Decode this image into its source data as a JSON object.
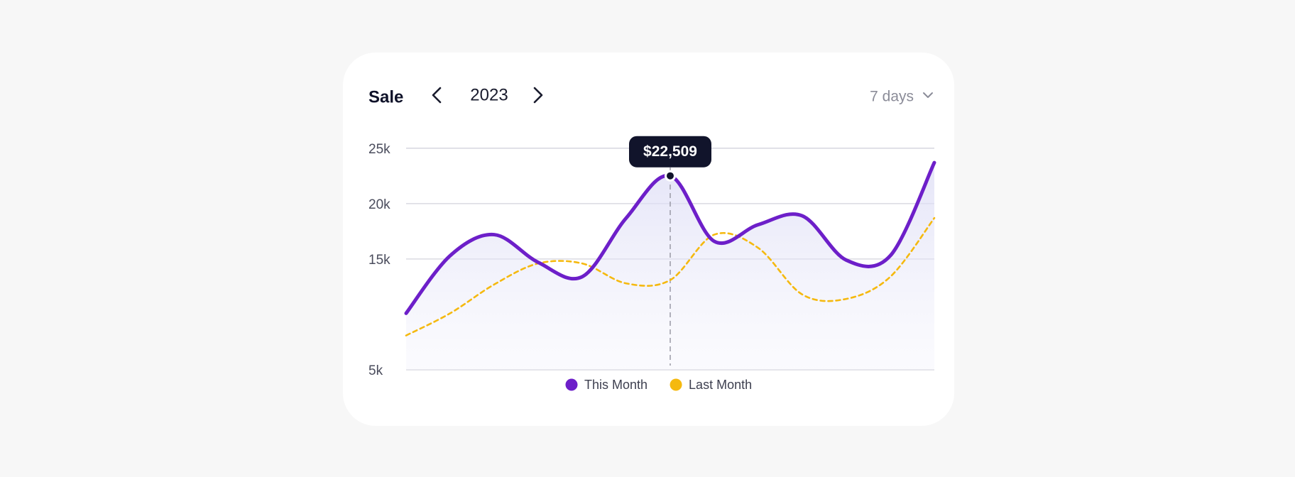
{
  "chart_data": {
    "type": "line",
    "title": "Sale",
    "period": "2023",
    "range": "7 days",
    "categories": [
      null,
      null,
      null,
      null,
      null,
      null,
      null,
      null,
      null,
      null,
      null,
      null,
      null
    ],
    "series": [
      {
        "name": "This Month",
        "color": "#6d1fc9",
        "values": [
          10100,
          15300,
          17200,
          14700,
          13400,
          18700,
          22509,
          16600,
          18100,
          18900,
          14900,
          15300,
          23700
        ],
        "value_labels": [
          null,
          null,
          null,
          null,
          null,
          null,
          "$22,509",
          null,
          null,
          null,
          null,
          null,
          null
        ]
      },
      {
        "name": "Last Month",
        "color": "#f5b90f",
        "values": [
          8100,
          10100,
          12700,
          14600,
          14600,
          12800,
          13100,
          17200,
          16000,
          11800,
          11400,
          13400,
          18700
        ]
      }
    ],
    "ylim": [
      5000,
      25500
    ],
    "yticks": [
      {
        "value": 25000,
        "label": "25k"
      },
      {
        "value": 20000,
        "label": "20k"
      },
      {
        "value": 15000,
        "label": "15k"
      },
      {
        "value": 5000,
        "label": "5k"
      }
    ],
    "grid": true
  }
}
